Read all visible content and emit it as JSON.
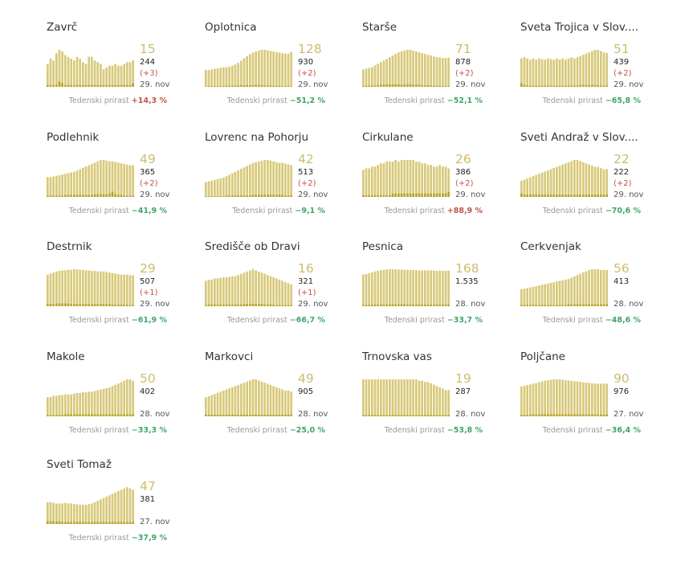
{
  "labels": {
    "growth": "Tedenski prirast"
  },
  "colors": {
    "bar": "#d8c97a",
    "bar_new": "#b8a225",
    "active_text": "#cdbd6e",
    "positive": "#c0524a",
    "negative": "#3fa56b"
  },
  "chart_data": [
    {
      "type": "bar",
      "title": "Zavrč",
      "active": "15",
      "total": "244",
      "delta": "(+3)",
      "date": "29. nov",
      "growth": "+14,3 %",
      "growth_sign": "pos",
      "values": [
        13,
        16,
        15,
        19,
        21,
        20,
        18,
        17,
        16,
        15,
        17,
        16,
        14,
        13,
        17,
        17,
        15,
        14,
        13,
        10,
        11,
        12,
        12,
        13,
        12,
        12,
        13,
        14,
        14,
        15
      ],
      "new": [
        1,
        1,
        1,
        1,
        3,
        2,
        1,
        1,
        1,
        1,
        1,
        1,
        1,
        1,
        1,
        1,
        1,
        1,
        1,
        1,
        1,
        1,
        1,
        1,
        1,
        1,
        1,
        1,
        1,
        2
      ]
    },
    {
      "type": "bar",
      "title": "Oplotnica",
      "active": "128",
      "total": "930",
      "delta": "(+2)",
      "date": "29. nov",
      "growth": "−51,2 %",
      "growth_sign": "neg",
      "values": [
        62,
        62,
        64,
        66,
        68,
        70,
        72,
        72,
        74,
        78,
        82,
        88,
        96,
        105,
        112,
        120,
        126,
        130,
        134,
        136,
        136,
        134,
        132,
        130,
        128,
        126,
        124,
        122,
        122,
        128
      ],
      "new": [
        2,
        3,
        3,
        3,
        3,
        3,
        3,
        4,
        4,
        4,
        5,
        5,
        6,
        6,
        6,
        6,
        6,
        7,
        7,
        6,
        5,
        5,
        5,
        4,
        4,
        4,
        3,
        3,
        3,
        2
      ]
    },
    {
      "type": "bar",
      "title": "Starše",
      "active": "71",
      "total": "878",
      "delta": "(+2)",
      "date": "29. nov",
      "growth": "−52,1 %",
      "growth_sign": "neg",
      "values": [
        42,
        44,
        46,
        48,
        52,
        56,
        60,
        64,
        68,
        72,
        76,
        80,
        84,
        86,
        88,
        90,
        90,
        88,
        86,
        84,
        82,
        80,
        78,
        76,
        74,
        72,
        72,
        70,
        70,
        71
      ],
      "new": [
        2,
        3,
        3,
        3,
        3,
        4,
        5,
        5,
        6,
        6,
        6,
        6,
        6,
        5,
        5,
        6,
        6,
        5,
        5,
        5,
        4,
        4,
        4,
        3,
        3,
        3,
        3,
        2,
        2,
        2
      ]
    },
    {
      "type": "bar",
      "title": "Sveta Trojica v Slov....",
      "active": "51",
      "total": "439",
      "delta": "(+2)",
      "date": "29. nov",
      "growth": "−65,8 %",
      "growth_sign": "neg",
      "values": [
        46,
        48,
        46,
        44,
        46,
        44,
        46,
        45,
        44,
        46,
        45,
        44,
        46,
        44,
        46,
        44,
        46,
        48,
        46,
        48,
        50,
        52,
        54,
        56,
        58,
        60,
        60,
        58,
        56,
        55
      ],
      "new": [
        6,
        3,
        2,
        2,
        2,
        2,
        2,
        2,
        2,
        2,
        2,
        2,
        2,
        2,
        2,
        2,
        2,
        2,
        2,
        2,
        3,
        3,
        3,
        3,
        3,
        3,
        3,
        2,
        2,
        2
      ]
    },
    {
      "type": "bar",
      "title": "Podlehnik",
      "active": "49",
      "total": "365",
      "delta": "(+2)",
      "date": "29. nov",
      "growth": "−41,9 %",
      "growth_sign": "neg",
      "values": [
        30,
        30,
        31,
        32,
        33,
        34,
        35,
        36,
        37,
        38,
        40,
        42,
        44,
        46,
        48,
        50,
        52,
        54,
        56,
        56,
        55,
        54,
        54,
        53,
        52,
        51,
        50,
        49,
        48,
        48
      ],
      "new": [
        2,
        2,
        2,
        2,
        2,
        2,
        3,
        3,
        3,
        3,
        3,
        3,
        3,
        3,
        3,
        3,
        4,
        4,
        4,
        4,
        4,
        5,
        8,
        4,
        3,
        3,
        2,
        2,
        2,
        2
      ]
    },
    {
      "type": "bar",
      "title": "Lovrenc na Pohorju",
      "active": "42",
      "total": "513",
      "delta": "(+2)",
      "date": "29. nov",
      "growth": "−9,1 %",
      "growth_sign": "neg",
      "values": [
        20,
        21,
        22,
        23,
        24,
        25,
        26,
        28,
        30,
        32,
        34,
        36,
        38,
        40,
        42,
        44,
        46,
        47,
        48,
        49,
        50,
        50,
        49,
        48,
        47,
        46,
        46,
        45,
        44,
        43
      ],
      "new": [
        1,
        1,
        1,
        1,
        1,
        1,
        1,
        2,
        2,
        2,
        2,
        2,
        2,
        2,
        2,
        2,
        3,
        3,
        3,
        3,
        3,
        3,
        3,
        3,
        3,
        3,
        3,
        2,
        2,
        2
      ]
    },
    {
      "type": "bar",
      "title": "Cirkulane",
      "active": "26",
      "total": "386",
      "delta": "(+2)",
      "date": "29. nov",
      "growth": "+88,9 %",
      "growth_sign": "pos",
      "values": [
        16,
        17,
        17,
        18,
        18,
        19,
        20,
        20,
        21,
        21,
        21,
        22,
        21,
        22,
        22,
        22,
        22,
        22,
        21,
        21,
        20,
        20,
        19,
        19,
        18,
        18,
        19,
        18,
        18,
        17
      ],
      "new": [
        1,
        1,
        1,
        1,
        1,
        1,
        1,
        1,
        1,
        1,
        2,
        2,
        2,
        2,
        2,
        2,
        2,
        2,
        2,
        2,
        2,
        2,
        2,
        2,
        2,
        2,
        2,
        2,
        2,
        3
      ]
    },
    {
      "type": "bar",
      "title": "Sveti Andraž v Slov....",
      "active": "22",
      "total": "222",
      "delta": "(+2)",
      "date": "29. nov",
      "growth": "−70,6 %",
      "growth_sign": "neg",
      "values": [
        14,
        15,
        16,
        17,
        18,
        19,
        20,
        21,
        22,
        23,
        24,
        25,
        26,
        27,
        28,
        29,
        30,
        31,
        32,
        32,
        31,
        30,
        29,
        28,
        27,
        26,
        26,
        25,
        24,
        24
      ],
      "new": [
        3,
        2,
        2,
        2,
        2,
        2,
        2,
        2,
        2,
        2,
        2,
        2,
        2,
        2,
        2,
        2,
        2,
        2,
        2,
        2,
        2,
        2,
        2,
        2,
        2,
        2,
        2,
        2,
        2,
        2
      ]
    },
    {
      "type": "bar",
      "title": "Destrnik",
      "active": "29",
      "total": "507",
      "delta": "(+1)",
      "date": "29. nov",
      "growth": "−61,9 %",
      "growth_sign": "neg",
      "values": [
        58,
        60,
        62,
        64,
        65,
        66,
        66,
        67,
        67,
        68,
        68,
        67,
        67,
        66,
        66,
        65,
        65,
        64,
        64,
        64,
        63,
        62,
        61,
        60,
        59,
        58,
        58,
        58,
        57,
        57
      ],
      "new": [
        4,
        4,
        4,
        5,
        5,
        5,
        5,
        5,
        4,
        4,
        4,
        4,
        4,
        4,
        4,
        4,
        4,
        4,
        4,
        4,
        4,
        4,
        3,
        3,
        3,
        3,
        3,
        3,
        2,
        2
      ]
    },
    {
      "type": "bar",
      "title": "Središče ob Dravi",
      "active": "16",
      "total": "321",
      "delta": "(+1)",
      "date": "29. nov",
      "growth": "−66,7 %",
      "growth_sign": "neg",
      "values": [
        44,
        46,
        46,
        48,
        48,
        49,
        50,
        50,
        51,
        52,
        52,
        54,
        56,
        58,
        60,
        62,
        64,
        62,
        60,
        58,
        56,
        54,
        52,
        50,
        48,
        46,
        44,
        42,
        40,
        38
      ],
      "new": [
        2,
        3,
        3,
        3,
        3,
        3,
        3,
        3,
        3,
        3,
        3,
        3,
        3,
        4,
        4,
        4,
        4,
        4,
        4,
        4,
        3,
        3,
        3,
        3,
        2,
        2,
        2,
        2,
        2,
        2
      ]
    },
    {
      "type": "bar",
      "title": "Pesnica",
      "active": "168",
      "total": "1.535",
      "delta": "",
      "date": "28. nov",
      "growth": "−33,7 %",
      "growth_sign": "neg",
      "values": [
        150,
        152,
        156,
        160,
        164,
        168,
        170,
        172,
        174,
        175,
        175,
        174,
        174,
        173,
        172,
        172,
        171,
        171,
        170,
        170,
        170,
        170,
        169,
        169,
        169,
        168,
        168,
        168,
        168,
        168
      ],
      "new": [
        6,
        7,
        7,
        8,
        8,
        8,
        8,
        8,
        9,
        9,
        9,
        9,
        9,
        9,
        9,
        8,
        8,
        8,
        8,
        8,
        8,
        8,
        8,
        8,
        8,
        8,
        8,
        8,
        8,
        8
      ]
    },
    {
      "type": "bar",
      "title": "Cerkvenjak",
      "active": "56",
      "total": "413",
      "delta": "",
      "date": "28. nov",
      "growth": "−48,6 %",
      "growth_sign": "neg",
      "values": [
        26,
        27,
        28,
        29,
        30,
        31,
        32,
        33,
        34,
        35,
        36,
        37,
        38,
        39,
        40,
        41,
        42,
        44,
        46,
        48,
        50,
        52,
        54,
        56,
        57,
        57,
        57,
        56,
        56,
        56
      ],
      "new": [
        2,
        2,
        2,
        2,
        2,
        2,
        2,
        2,
        2,
        2,
        2,
        2,
        2,
        2,
        2,
        2,
        3,
        3,
        3,
        3,
        3,
        3,
        3,
        3,
        3,
        3,
        3,
        3,
        3,
        3
      ]
    },
    {
      "type": "bar",
      "title": "Makole",
      "active": "50",
      "total": "402",
      "delta": "",
      "date": "28. nov",
      "growth": "−33,3 %",
      "growth_sign": "neg",
      "values": [
        28,
        28,
        30,
        30,
        31,
        31,
        32,
        32,
        32,
        33,
        34,
        34,
        35,
        35,
        36,
        36,
        37,
        38,
        39,
        40,
        41,
        42,
        44,
        46,
        48,
        50,
        52,
        54,
        54,
        52
      ],
      "new": [
        2,
        2,
        2,
        2,
        2,
        2,
        3,
        3,
        3,
        3,
        3,
        3,
        3,
        3,
        3,
        3,
        3,
        3,
        3,
        3,
        3,
        3,
        3,
        3,
        3,
        3,
        3,
        3,
        3,
        3
      ]
    },
    {
      "type": "bar",
      "title": "Markovci",
      "active": "49",
      "total": "905",
      "delta": "",
      "date": "28. nov",
      "growth": "−25,0 %",
      "growth_sign": "neg",
      "values": [
        34,
        36,
        38,
        40,
        42,
        44,
        46,
        48,
        50,
        52,
        54,
        56,
        58,
        60,
        62,
        64,
        66,
        66,
        64,
        62,
        60,
        58,
        56,
        54,
        52,
        50,
        48,
        46,
        46,
        44
      ],
      "new": [
        3,
        3,
        3,
        3,
        3,
        3,
        3,
        3,
        3,
        3,
        3,
        3,
        3,
        3,
        3,
        3,
        3,
        3,
        3,
        3,
        3,
        3,
        3,
        3,
        3,
        3,
        3,
        3,
        3,
        3
      ]
    },
    {
      "type": "bar",
      "title": "Trnovska vas",
      "active": "19",
      "total": "287",
      "delta": "",
      "date": "28. nov",
      "growth": "−53,8 %",
      "growth_sign": "neg",
      "values": [
        28,
        28,
        28,
        28,
        28,
        28,
        28,
        28,
        28,
        28,
        28,
        28,
        28,
        28,
        28,
        28,
        28,
        28,
        28,
        27,
        27,
        26,
        26,
        25,
        24,
        23,
        22,
        21,
        20,
        20
      ],
      "new": [
        1,
        1,
        1,
        1,
        1,
        1,
        1,
        1,
        1,
        1,
        1,
        1,
        1,
        1,
        1,
        1,
        1,
        1,
        1,
        1,
        1,
        1,
        1,
        1,
        1,
        1,
        1,
        1,
        1,
        1
      ]
    },
    {
      "type": "bar",
      "title": "Poljčane",
      "active": "90",
      "total": "976",
      "delta": "",
      "date": "27. nov",
      "growth": "−36,4 %",
      "growth_sign": "neg",
      "values": [
        82,
        84,
        86,
        88,
        90,
        92,
        94,
        96,
        98,
        100,
        101,
        102,
        102,
        102,
        101,
        100,
        99,
        98,
        97,
        96,
        95,
        94,
        93,
        92,
        91,
        90,
        90,
        90,
        90,
        90
      ],
      "new": [
        4,
        4,
        4,
        5,
        5,
        5,
        5,
        6,
        6,
        6,
        6,
        6,
        6,
        6,
        6,
        6,
        6,
        6,
        6,
        6,
        5,
        5,
        5,
        5,
        5,
        5,
        5,
        5,
        5,
        5
      ]
    },
    {
      "type": "bar",
      "title": "Sveti Tomaž",
      "active": "47",
      "total": "381",
      "delta": "",
      "date": "27. nov",
      "growth": "−37,9 %",
      "growth_sign": "neg",
      "values": [
        32,
        32,
        31,
        30,
        30,
        30,
        31,
        30,
        30,
        29,
        29,
        28,
        28,
        28,
        29,
        30,
        32,
        34,
        36,
        38,
        40,
        42,
        44,
        46,
        48,
        50,
        52,
        54,
        52,
        50
      ],
      "new": [
        4,
        4,
        4,
        4,
        4,
        3,
        3,
        3,
        3,
        3,
        3,
        3,
        3,
        3,
        3,
        3,
        3,
        3,
        3,
        3,
        3,
        3,
        3,
        3,
        3,
        3,
        3,
        3,
        3,
        3
      ]
    }
  ]
}
